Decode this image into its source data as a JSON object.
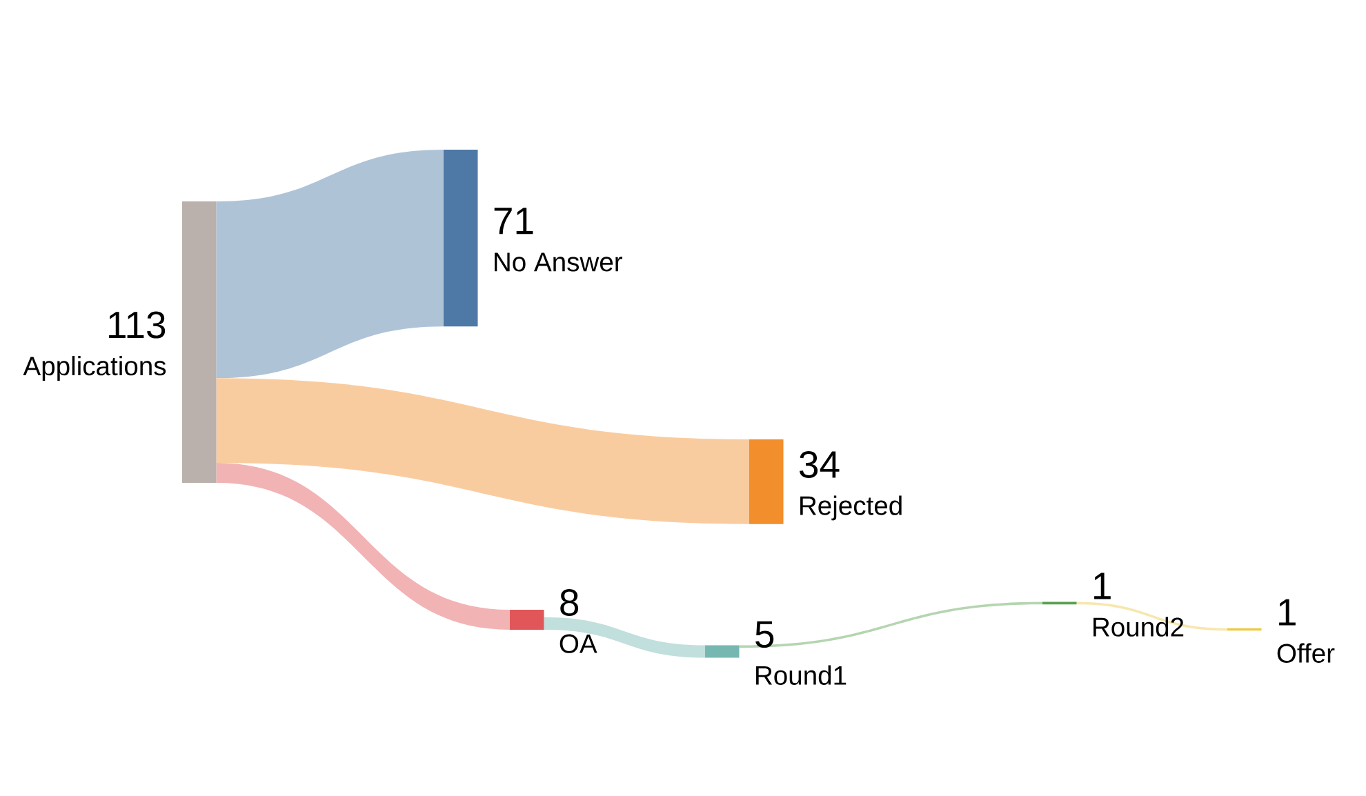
{
  "chart_data": {
    "type": "other",
    "categories": [
      "Applications",
      "No Answer",
      "Rejected",
      "OA",
      "Round1",
      "Round2",
      "Offer"
    ],
    "colors": [
      "#bab0ac",
      "#4e79a7",
      "#f28e2b",
      "#e15759",
      "#76b7b2",
      "#59a14f",
      "#edc948"
    ],
    "data_labels": true,
    "totals": [
      "113",
      null,
      null,
      null,
      null,
      null,
      null
    ],
    "series": [
      {
        "values": [
          null,
          71,
          34,
          8,
          null,
          null,
          null
        ]
      },
      {
        "values": [
          null,
          null,
          null,
          null,
          null,
          null,
          null
        ]
      },
      {
        "values": [
          null,
          null,
          null,
          null,
          null,
          null,
          null
        ]
      },
      {
        "values": [
          null,
          null,
          null,
          null,
          5,
          null,
          null
        ]
      },
      {
        "values": [
          null,
          null,
          null,
          null,
          null,
          1,
          null
        ]
      },
      {
        "values": [
          null,
          null,
          null,
          null,
          null,
          null,
          1
        ]
      },
      {
        "values": [
          null,
          null,
          null,
          null,
          null,
          null,
          null
        ]
      }
    ]
  }
}
